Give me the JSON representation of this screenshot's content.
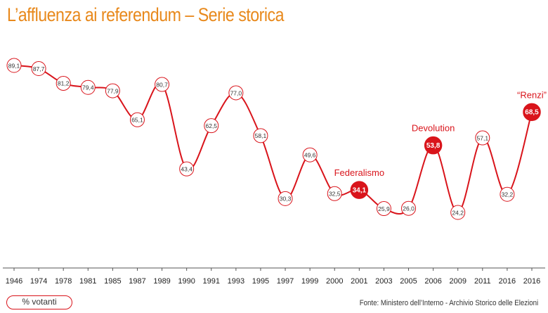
{
  "title": "L’affluenza ai referendum – Serie storica",
  "legend_label": "% votanti",
  "source": "Fonte: Ministero dell’Interno - Archivio Storico delle Elezioni",
  "colors": {
    "line": "#d9141b",
    "title": "#e8891c",
    "highlight_fill": "#d9141b",
    "text": "#333333"
  },
  "chart_data": {
    "type": "line",
    "title": "L’affluenza ai referendum – Serie storica",
    "ylabel": "",
    "xlabel": "",
    "grid": false,
    "categories": [
      "1946",
      "1974",
      "1978",
      "1981",
      "1985",
      "1987",
      "1989",
      "1990",
      "1991",
      "1993",
      "1995",
      "1997",
      "1999",
      "2000",
      "2001",
      "2003",
      "2005",
      "2006",
      "2009",
      "2011",
      "2016",
      "2016"
    ],
    "values": [
      89.1,
      87.7,
      81.2,
      79.4,
      77.9,
      65.1,
      80.7,
      43.4,
      62.5,
      77.0,
      58.1,
      30.3,
      49.6,
      32.5,
      34.1,
      25.9,
      26.0,
      53.8,
      24.2,
      57.1,
      32.2,
      68.5
    ],
    "value_labels": [
      "89,1",
      "87,7",
      "81,2",
      "79,4",
      "77,9",
      "65,1",
      "80,7",
      "43,4",
      "62,5",
      "77,0",
      "58,1",
      "30,3",
      "49,6",
      "32,5",
      "34,1",
      "25,9",
      "26,0",
      "53,8",
      "24,2",
      "57,1",
      "32,2",
      "68,5"
    ],
    "annotations": [
      {
        "index": 14,
        "text": "Federalismo"
      },
      {
        "index": 17,
        "text": "Devolution"
      },
      {
        "index": 21,
        "text": "“Renzi”"
      }
    ]
  }
}
